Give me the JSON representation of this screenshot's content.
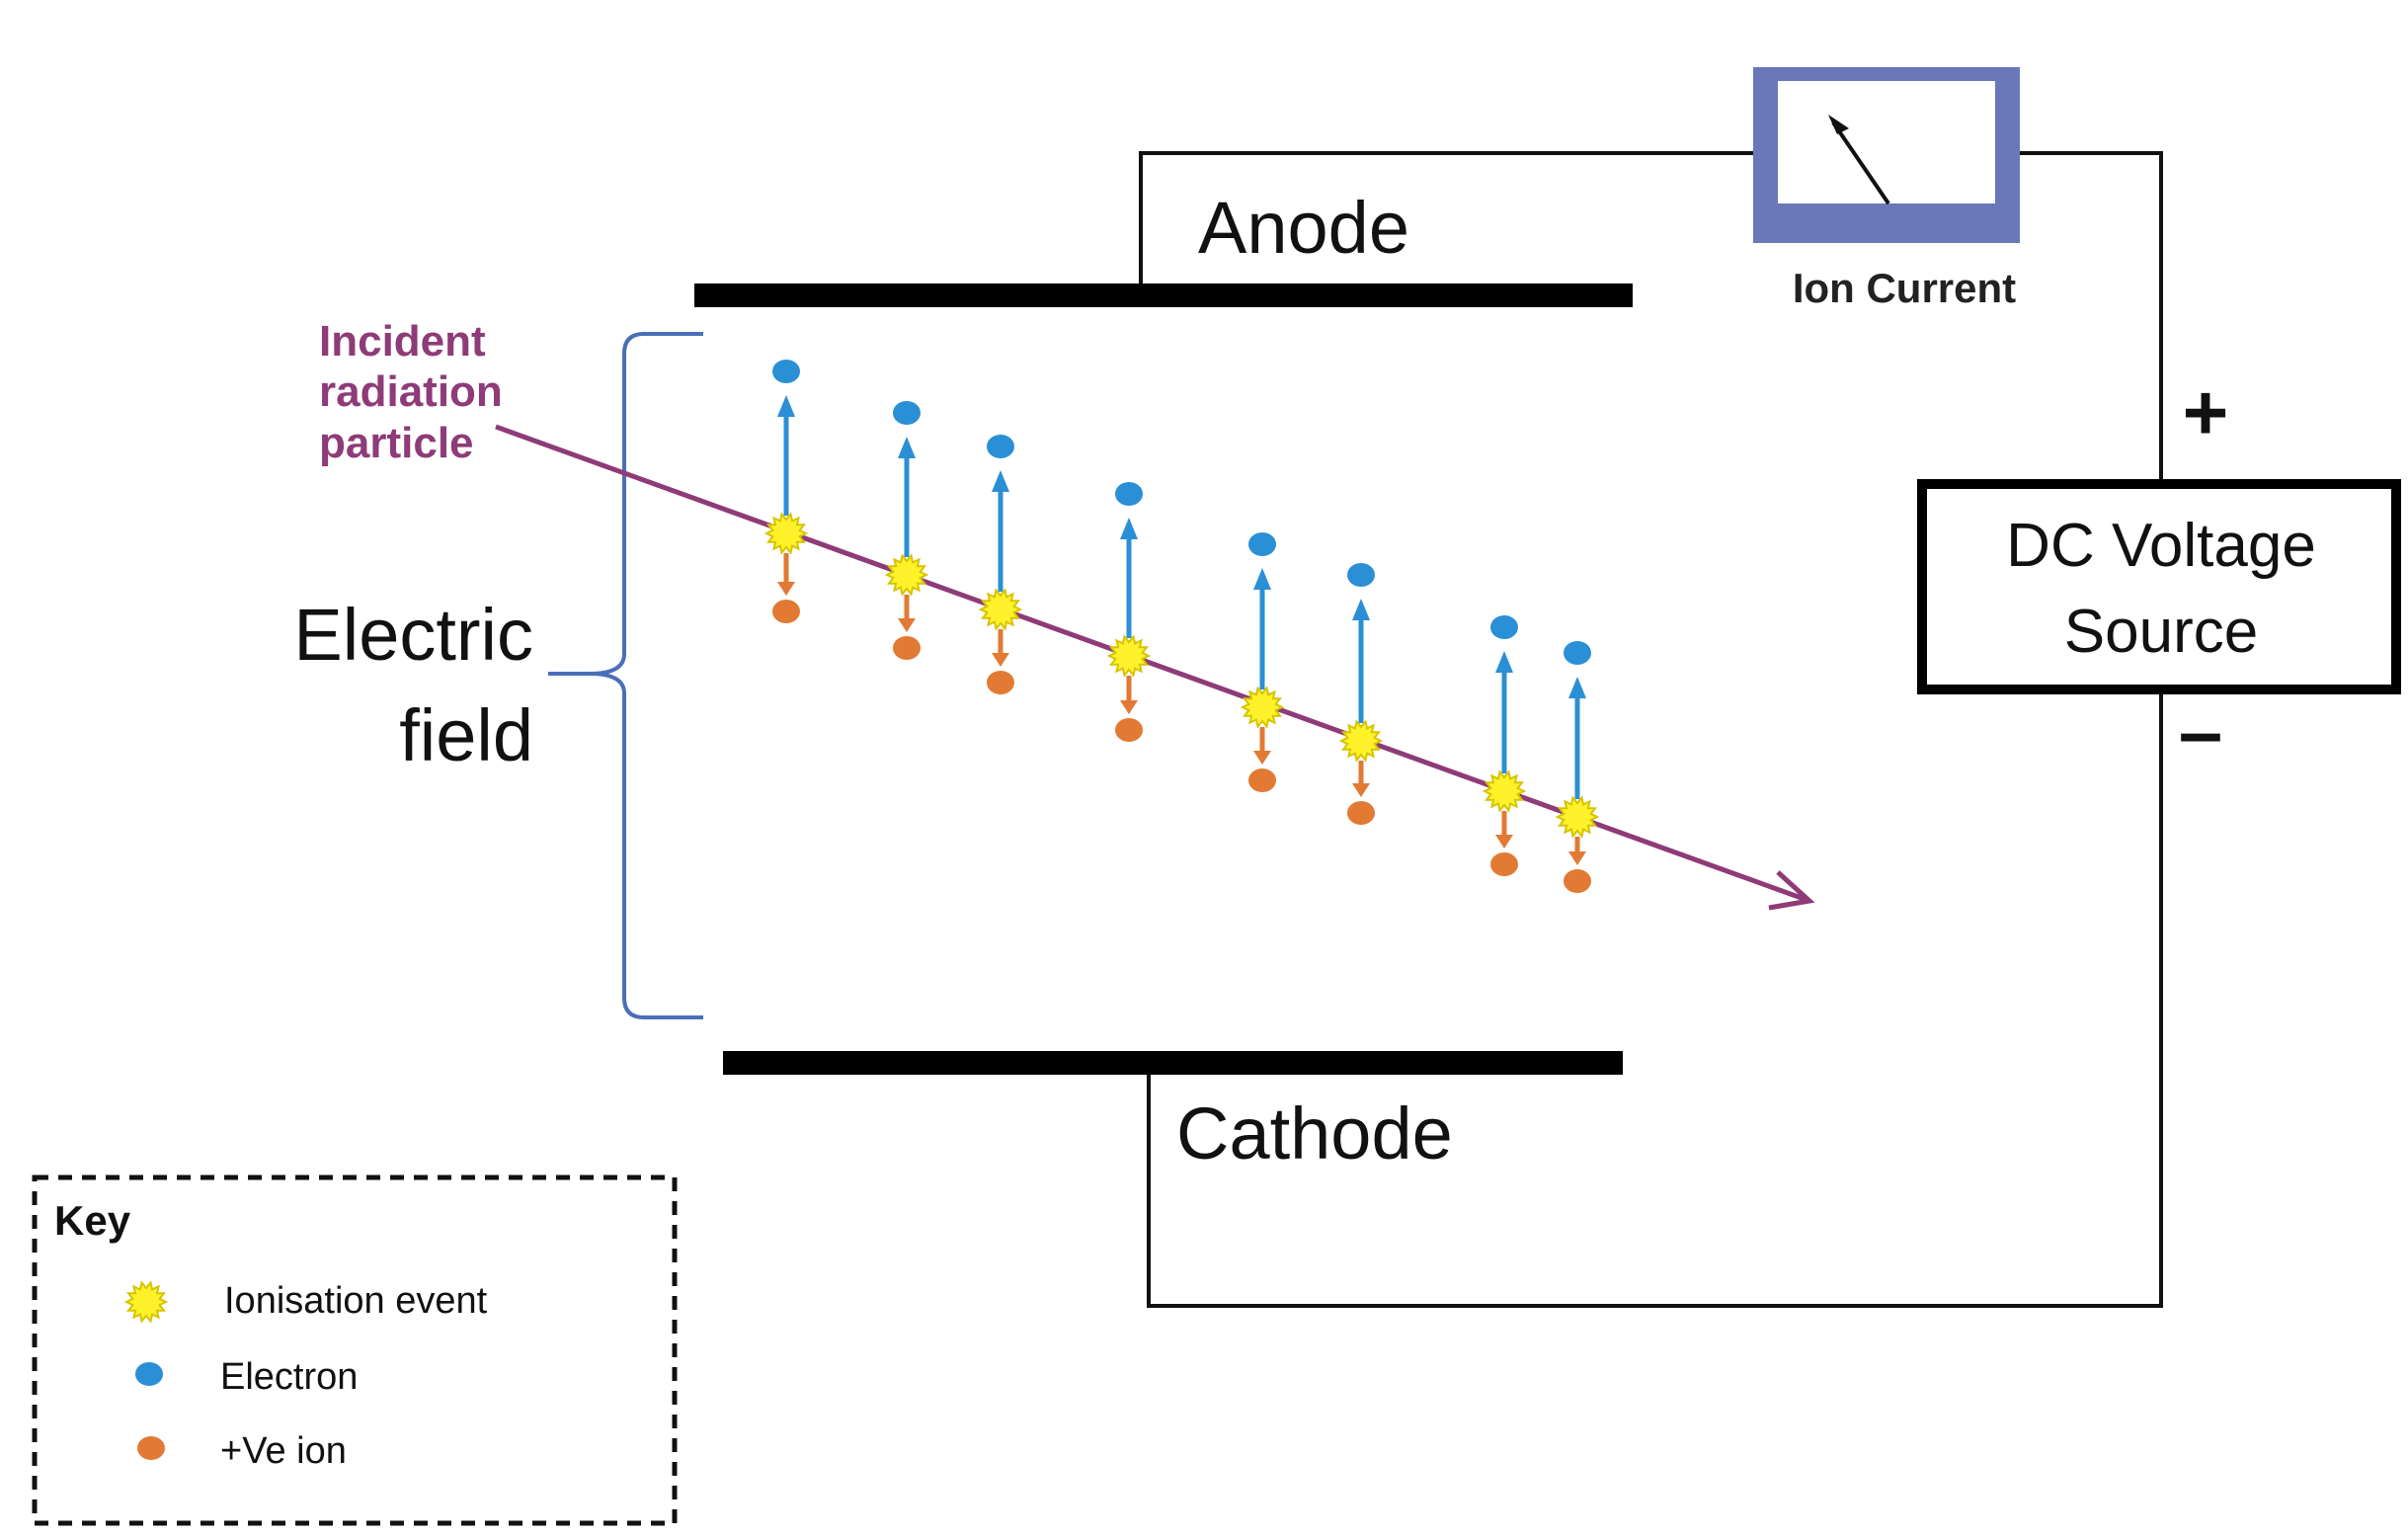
{
  "diagram": {
    "labels": {
      "anode": "Anode",
      "cathode": "Cathode",
      "meter": "Ion Current",
      "source_line1": "DC Voltage",
      "source_line2": "Source",
      "plus": "+",
      "minus": "–",
      "field_line1": "Electric",
      "field_line2": "field",
      "incident_line1": "Incident",
      "incident_line2": "radiation",
      "incident_line3": "particle"
    },
    "key": {
      "title": "Key",
      "items": [
        {
          "label": "Ionisation event",
          "symbol": "star"
        },
        {
          "label": "Electron",
          "symbol": "electron"
        },
        {
          "label": "+Ve ion",
          "symbol": "ion"
        }
      ]
    },
    "ionisation_event_count": 8,
    "colors": {
      "track": "#8e3b78",
      "electron": "#2b8fd6",
      "ion": "#e27a34",
      "ionisation": "#fff22a",
      "ionisation_stroke": "#d6c400",
      "bracket": "#4a6fb8",
      "meter_frame": "#6a77b8",
      "wire": "#111111"
    },
    "icons": {
      "meter": "ammeter-icon",
      "ionisation": "ionisation-star-icon",
      "electron": "electron-dot-icon",
      "ion": "positive-ion-dot-icon"
    }
  }
}
